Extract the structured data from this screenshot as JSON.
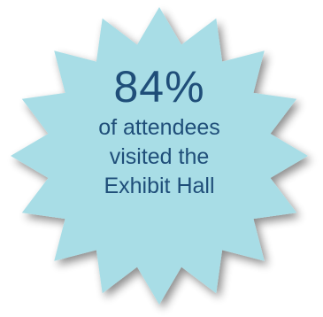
{
  "badge": {
    "value": "84%",
    "lines": [
      "of attendees",
      "visited the",
      "Exhibit Hall"
    ],
    "fill_color": "#a8dde6",
    "shadow_color": "#9aa4a8",
    "text_color": "#1f4e79"
  }
}
